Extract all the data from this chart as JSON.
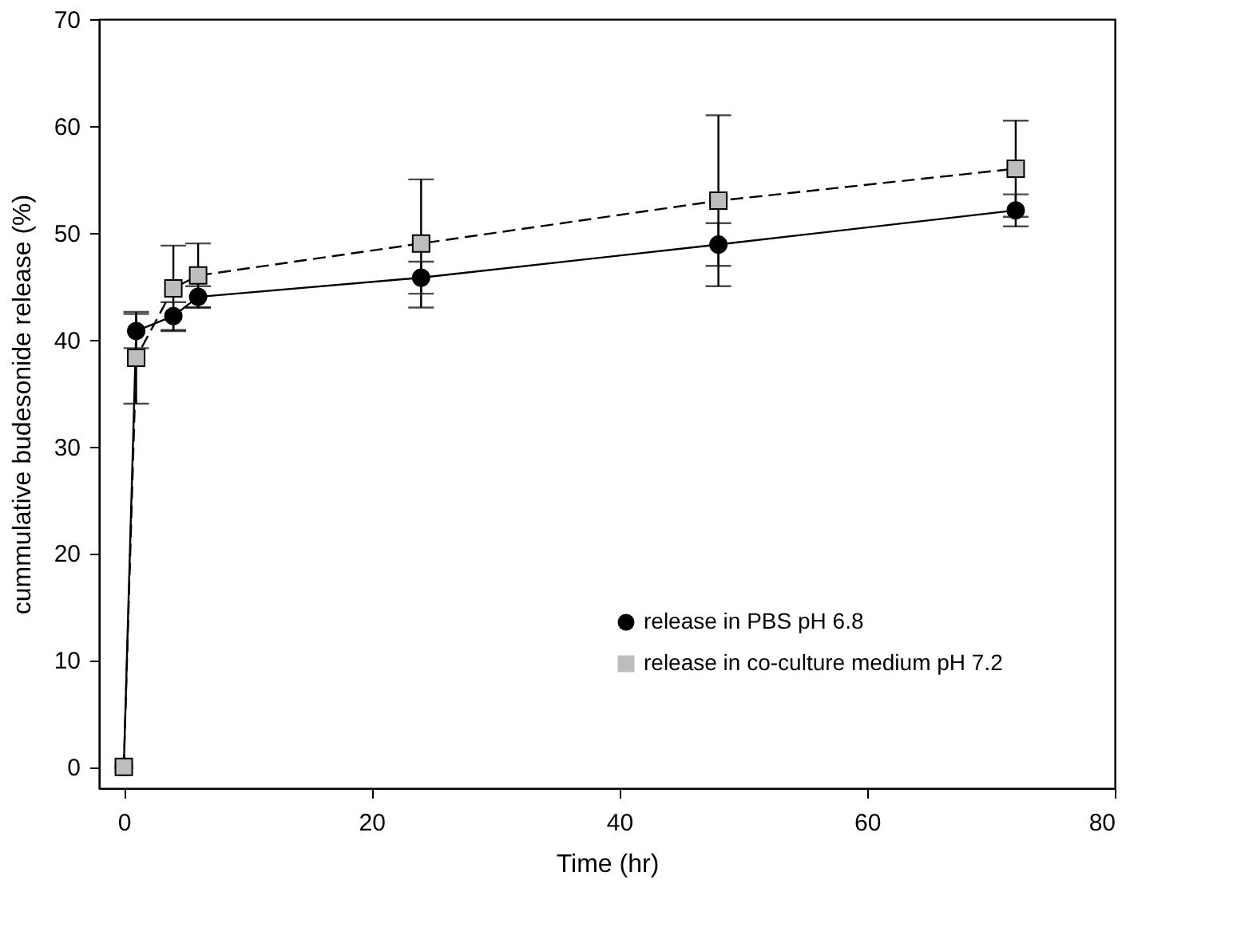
{
  "chart_data": {
    "type": "line",
    "xlabel": "Time (hr)",
    "ylabel": "cummulative budesonide release (%)",
    "x": [
      0,
      1,
      4,
      6,
      24,
      48,
      72
    ],
    "series": [
      {
        "name": "release in PBS pH 6.8",
        "color": "#000000",
        "marker": "circle",
        "line_style": "solid",
        "values": [
          0,
          40.8,
          42.2,
          44.0,
          45.8,
          48.9,
          52.1
        ],
        "errors": [
          null,
          1.6,
          1.3,
          1.0,
          1.5,
          2.0,
          1.5
        ]
      },
      {
        "name": "release in co-culture medium pH 7.2",
        "color": "#bdbdbd",
        "marker": "square",
        "line_style": "dashed",
        "values": [
          0,
          38.3,
          44.8,
          46.0,
          49.0,
          53.0,
          56.0
        ],
        "errors": [
          null,
          4.3,
          4.0,
          3.0,
          6.0,
          8.0,
          4.5
        ]
      }
    ],
    "xlim": [
      -2,
      80
    ],
    "xticks": [
      0,
      20,
      40,
      60,
      80
    ],
    "ylim": [
      -2,
      70
    ],
    "yticks": [
      0,
      10,
      20,
      30,
      40,
      50,
      60,
      70
    ],
    "grid": false,
    "legend": "bottom right"
  }
}
